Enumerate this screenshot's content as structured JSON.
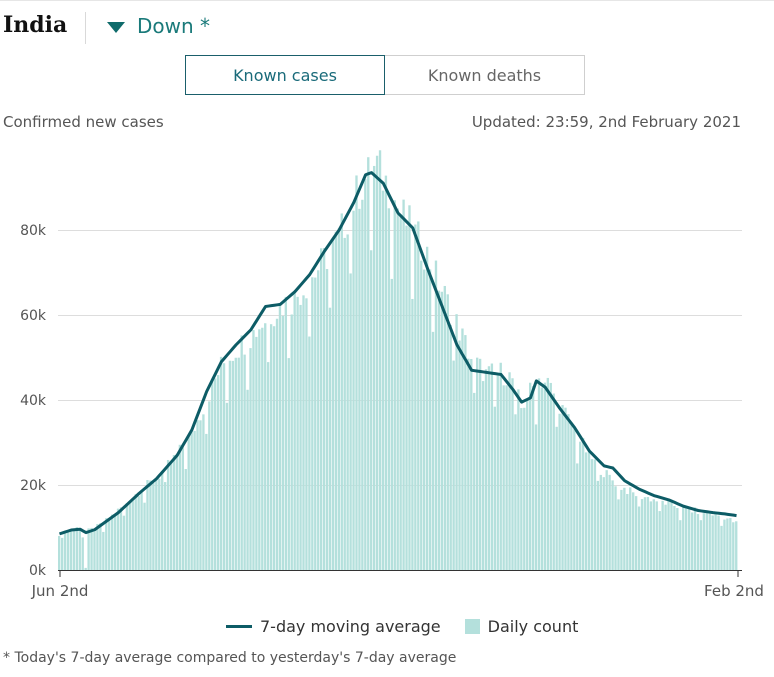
{
  "header": {
    "country": "India",
    "trend_label": "Down *"
  },
  "tabs": [
    {
      "label": "Known cases",
      "active": true
    },
    {
      "label": "Known deaths",
      "active": false
    }
  ],
  "subtitle": "Confirmed new cases",
  "updated": "Updated: 23:59, 2nd February 2021",
  "legend": {
    "line_label": "7-day moving average",
    "bar_label": "Daily count"
  },
  "footnote": "* Today's 7-day average compared to yesterday's 7-day average",
  "colors": {
    "bar": "#b4e0dc",
    "line": "#0d5c66",
    "accent": "#1a7a7a",
    "grid": "#dddddd"
  },
  "chart_data": {
    "type": "bar",
    "x_start_label": "Jun 2nd",
    "x_end_label": "Feb 2nd",
    "ylim": [
      0,
      100000
    ],
    "y_ticks": [
      0,
      20000,
      40000,
      60000,
      80000
    ],
    "y_tick_labels": [
      "0k",
      "20k",
      "40k",
      "60k",
      "80k"
    ],
    "grid": true,
    "daily_anchors": [
      [
        0,
        8500
      ],
      [
        4,
        9600
      ],
      [
        7,
        10100
      ],
      [
        9,
        9000
      ],
      [
        12,
        9800
      ],
      [
        15,
        11000
      ],
      [
        20,
        14000
      ],
      [
        27,
        18500
      ],
      [
        33,
        21500
      ],
      [
        40,
        27000
      ],
      [
        45,
        32000
      ],
      [
        50,
        40000
      ],
      [
        55,
        48000
      ],
      [
        60,
        52000
      ],
      [
        65,
        55000
      ],
      [
        70,
        59000
      ],
      [
        75,
        62000
      ],
      [
        80,
        64000
      ],
      [
        85,
        68000
      ],
      [
        90,
        73000
      ],
      [
        95,
        78000
      ],
      [
        100,
        87000
      ],
      [
        104,
        92000
      ],
      [
        108,
        95000
      ],
      [
        112,
        90000
      ],
      [
        116,
        84000
      ],
      [
        120,
        80000
      ],
      [
        125,
        74000
      ],
      [
        130,
        66000
      ],
      [
        135,
        58000
      ],
      [
        140,
        50000
      ],
      [
        145,
        46000
      ],
      [
        150,
        46500
      ],
      [
        154,
        45000
      ],
      [
        157,
        38000
      ],
      [
        160,
        42000
      ],
      [
        163,
        45000
      ],
      [
        166,
        44000
      ],
      [
        170,
        39000
      ],
      [
        175,
        33000
      ],
      [
        180,
        27000
      ],
      [
        185,
        23000
      ],
      [
        190,
        20000
      ],
      [
        195,
        18000
      ],
      [
        200,
        17000
      ],
      [
        205,
        16000
      ],
      [
        210,
        15000
      ],
      [
        215,
        14000
      ],
      [
        220,
        13500
      ],
      [
        226,
        12500
      ],
      [
        230,
        11000
      ]
    ],
    "line_anchors": [
      [
        0,
        8500
      ],
      [
        4,
        9400
      ],
      [
        7,
        9600
      ],
      [
        9,
        8800
      ],
      [
        12,
        9500
      ],
      [
        15,
        11000
      ],
      [
        20,
        13500
      ],
      [
        27,
        18000
      ],
      [
        33,
        21500
      ],
      [
        40,
        27000
      ],
      [
        45,
        33000
      ],
      [
        50,
        42000
      ],
      [
        55,
        49000
      ],
      [
        60,
        53000
      ],
      [
        65,
        56500
      ],
      [
        70,
        62000
      ],
      [
        75,
        62500
      ],
      [
        80,
        65500
      ],
      [
        85,
        69500
      ],
      [
        90,
        75000
      ],
      [
        95,
        80000
      ],
      [
        100,
        86500
      ],
      [
        104,
        93000
      ],
      [
        106,
        93500
      ],
      [
        110,
        91000
      ],
      [
        115,
        84000
      ],
      [
        120,
        80500
      ],
      [
        125,
        71000
      ],
      [
        130,
        62000
      ],
      [
        135,
        53000
      ],
      [
        140,
        47000
      ],
      [
        145,
        46500
      ],
      [
        150,
        46000
      ],
      [
        154,
        42500
      ],
      [
        157,
        39500
      ],
      [
        160,
        40500
      ],
      [
        162,
        44500
      ],
      [
        165,
        43000
      ],
      [
        170,
        38000
      ],
      [
        175,
        33500
      ],
      [
        180,
        28000
      ],
      [
        185,
        24500
      ],
      [
        188,
        24000
      ],
      [
        192,
        21000
      ],
      [
        197,
        19000
      ],
      [
        202,
        17500
      ],
      [
        207,
        16500
      ],
      [
        212,
        15000
      ],
      [
        217,
        14000
      ],
      [
        222,
        13500
      ],
      [
        226,
        13200
      ],
      [
        230,
        12800
      ]
    ],
    "num_days": 231
  }
}
